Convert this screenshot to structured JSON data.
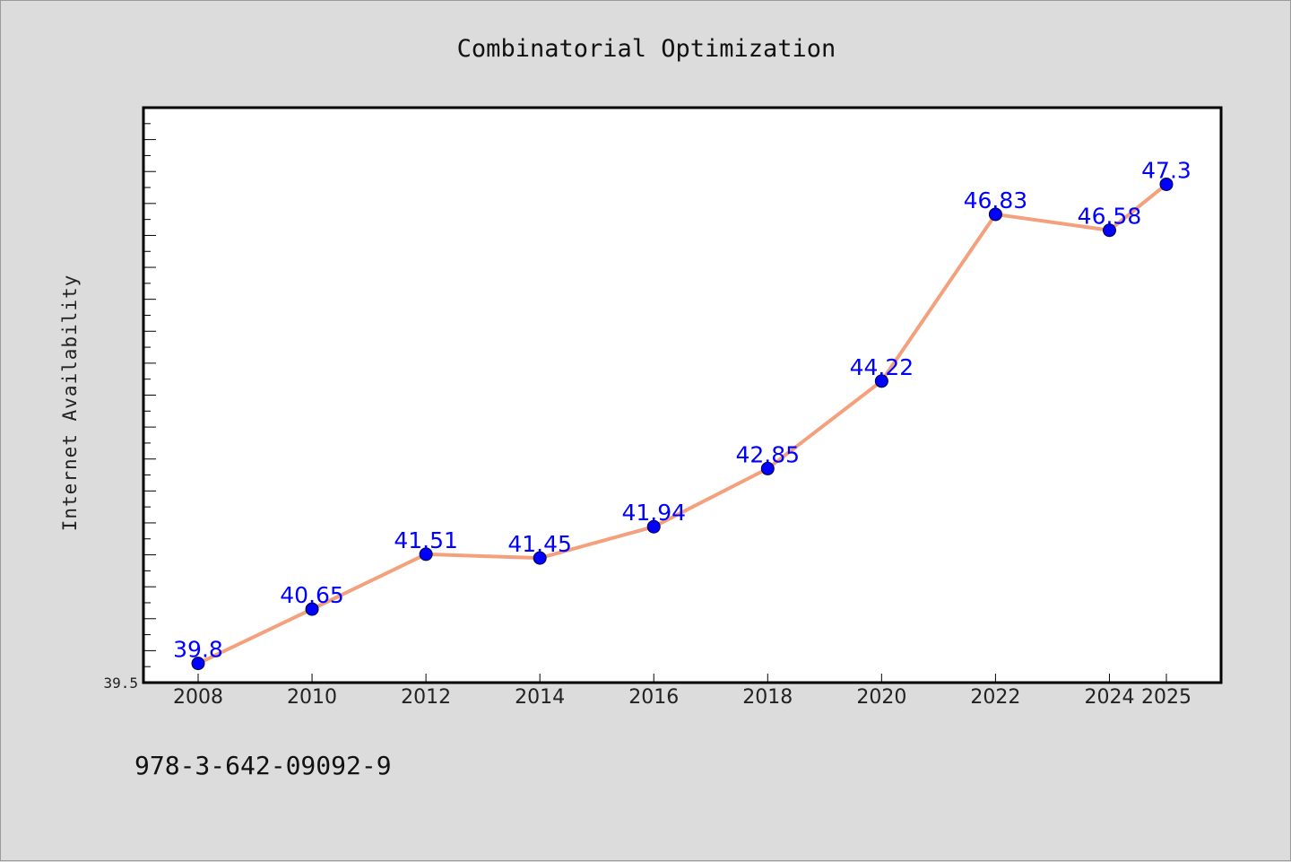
{
  "chart_data": {
    "type": "line",
    "title": "Combinatorial Optimization",
    "ylabel": "Internet Availability",
    "xlabel": "",
    "categories": [
      "2008",
      "2010",
      "2012",
      "2014",
      "2016",
      "2018",
      "2020",
      "2022",
      "2024",
      "2025"
    ],
    "series": [
      {
        "values": [
          39.8,
          40.65,
          41.51,
          41.45,
          41.94,
          42.85,
          44.22,
          46.83,
          46.58,
          47.3
        ],
        "data_labels": [
          "39.8",
          "40.65",
          "41.51",
          "41.45",
          "41.94",
          "42.85",
          "44.22",
          "46.83",
          "46.58",
          "47.3"
        ]
      }
    ],
    "y_tick_labels": [
      "39.5"
    ],
    "ylim": [
      39.5,
      48.5
    ],
    "line_color": "#f4a07c",
    "marker_color": "#0000ff",
    "label_color": "#0000ff",
    "grid": false
  },
  "footer": {
    "isbn": "978-3-642-09092-9"
  }
}
